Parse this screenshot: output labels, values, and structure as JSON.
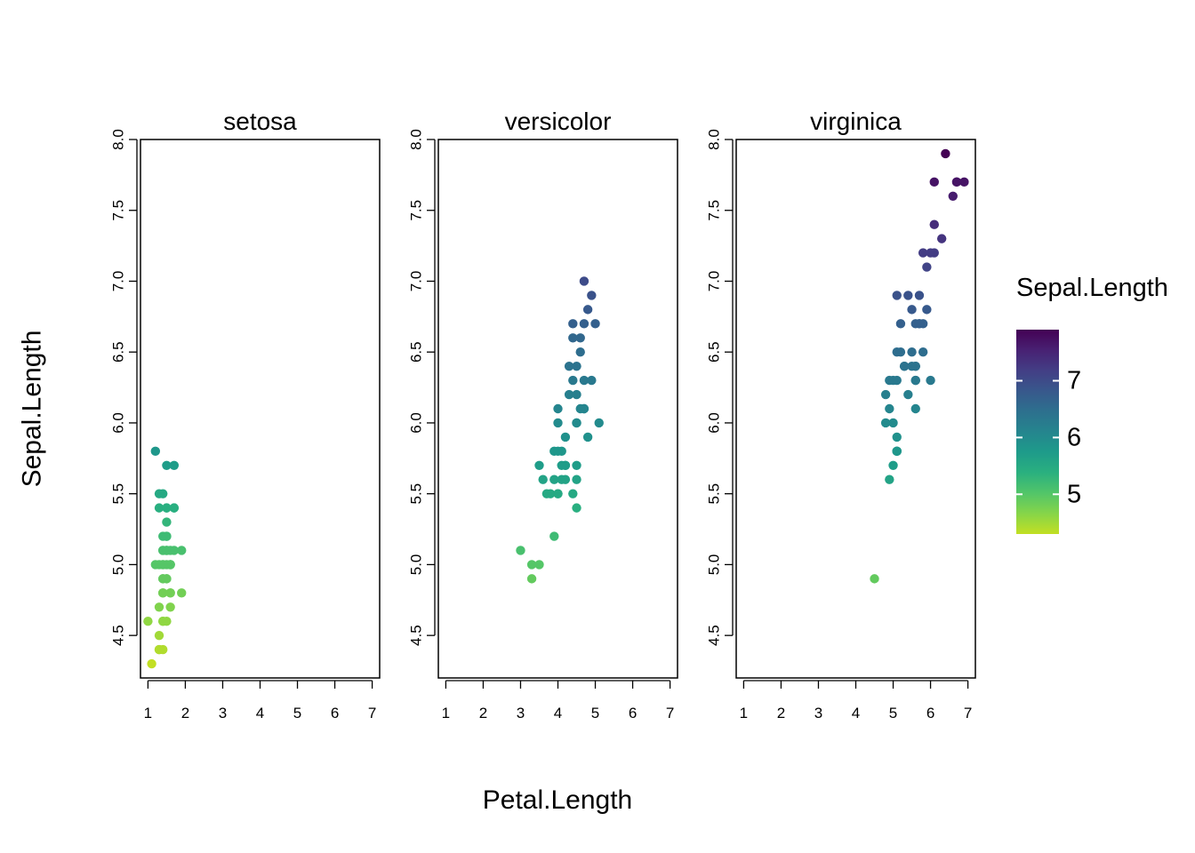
{
  "chart_data": {
    "type": "scatter",
    "xlabel": "Petal.Length",
    "ylabel": "Sepal.Length",
    "xlim": [
      0.8,
      7.2
    ],
    "ylim": [
      4.2,
      8.0
    ],
    "x_ticks": [
      1,
      2,
      3,
      4,
      5,
      6,
      7
    ],
    "y_ticks": [
      4.5,
      5.0,
      5.5,
      6.0,
      6.5,
      7.0,
      7.5,
      8.0
    ],
    "y_tick_labels": [
      "4.5",
      "5.0",
      "5.5",
      "6.0",
      "6.5",
      "7.0",
      "7.5",
      "8.0"
    ],
    "grid": false,
    "color_by": "Sepal.Length",
    "colorscale": "viridis-reversed",
    "color_range": [
      4.3,
      7.9
    ],
    "legend": {
      "title": "Sepal.Length",
      "position": "right",
      "ticks": [
        5,
        6,
        7
      ],
      "colors": [
        "#c2df23",
        "#86d549",
        "#52c569",
        "#2ab07f",
        "#1e9b8a",
        "#25858e",
        "#2d708e",
        "#38588c",
        "#433e85",
        "#482173",
        "#440154"
      ]
    },
    "facets": [
      {
        "title": "setosa",
        "points": [
          [
            1.4,
            5.1
          ],
          [
            1.4,
            4.9
          ],
          [
            1.3,
            4.7
          ],
          [
            1.5,
            4.6
          ],
          [
            1.4,
            5.0
          ],
          [
            1.7,
            5.4
          ],
          [
            1.4,
            4.6
          ],
          [
            1.5,
            5.0
          ],
          [
            1.4,
            4.4
          ],
          [
            1.5,
            4.9
          ],
          [
            1.5,
            5.4
          ],
          [
            1.6,
            4.8
          ],
          [
            1.4,
            4.8
          ],
          [
            1.1,
            4.3
          ],
          [
            1.2,
            5.8
          ],
          [
            1.5,
            5.7
          ],
          [
            1.3,
            5.4
          ],
          [
            1.4,
            5.1
          ],
          [
            1.7,
            5.7
          ],
          [
            1.5,
            5.1
          ],
          [
            1.7,
            5.4
          ],
          [
            1.5,
            5.1
          ],
          [
            1.0,
            4.6
          ],
          [
            1.7,
            5.1
          ],
          [
            1.9,
            4.8
          ],
          [
            1.6,
            5.0
          ],
          [
            1.6,
            5.0
          ],
          [
            1.5,
            5.2
          ],
          [
            1.4,
            5.2
          ],
          [
            1.6,
            4.7
          ],
          [
            1.6,
            4.8
          ],
          [
            1.5,
            5.4
          ],
          [
            1.5,
            5.2
          ],
          [
            1.4,
            5.5
          ],
          [
            1.5,
            4.9
          ],
          [
            1.2,
            5.0
          ],
          [
            1.3,
            5.5
          ],
          [
            1.4,
            4.9
          ],
          [
            1.3,
            4.4
          ],
          [
            1.5,
            5.1
          ],
          [
            1.3,
            5.0
          ],
          [
            1.3,
            4.5
          ],
          [
            1.3,
            4.4
          ],
          [
            1.6,
            5.0
          ],
          [
            1.9,
            5.1
          ],
          [
            1.4,
            4.8
          ],
          [
            1.6,
            5.1
          ],
          [
            1.4,
            4.6
          ],
          [
            1.5,
            5.3
          ],
          [
            1.4,
            5.0
          ]
        ]
      },
      {
        "title": "versicolor",
        "points": [
          [
            4.7,
            7.0
          ],
          [
            4.5,
            6.4
          ],
          [
            4.9,
            6.9
          ],
          [
            4.0,
            5.5
          ],
          [
            4.6,
            6.5
          ],
          [
            4.5,
            5.7
          ],
          [
            4.7,
            6.3
          ],
          [
            3.3,
            4.9
          ],
          [
            4.6,
            6.6
          ],
          [
            3.9,
            5.2
          ],
          [
            3.5,
            5.0
          ],
          [
            4.2,
            5.9
          ],
          [
            4.0,
            6.0
          ],
          [
            4.7,
            6.1
          ],
          [
            3.6,
            5.6
          ],
          [
            4.4,
            6.7
          ],
          [
            4.5,
            5.6
          ],
          [
            4.1,
            5.8
          ],
          [
            4.5,
            6.2
          ],
          [
            3.9,
            5.6
          ],
          [
            4.8,
            5.9
          ],
          [
            4.0,
            6.1
          ],
          [
            4.9,
            6.3
          ],
          [
            4.7,
            6.1
          ],
          [
            4.3,
            6.4
          ],
          [
            4.4,
            6.6
          ],
          [
            4.8,
            6.8
          ],
          [
            5.0,
            6.7
          ],
          [
            4.5,
            6.0
          ],
          [
            3.5,
            5.7
          ],
          [
            3.8,
            5.5
          ],
          [
            3.7,
            5.5
          ],
          [
            3.9,
            5.8
          ],
          [
            5.1,
            6.0
          ],
          [
            4.5,
            5.4
          ],
          [
            4.5,
            6.0
          ],
          [
            4.7,
            6.7
          ],
          [
            4.4,
            6.3
          ],
          [
            4.1,
            5.6
          ],
          [
            4.0,
            5.5
          ],
          [
            4.4,
            5.5
          ],
          [
            4.6,
            6.1
          ],
          [
            4.0,
            5.8
          ],
          [
            3.3,
            5.0
          ],
          [
            4.2,
            5.6
          ],
          [
            4.2,
            5.7
          ],
          [
            4.2,
            5.7
          ],
          [
            4.3,
            6.2
          ],
          [
            3.0,
            5.1
          ],
          [
            4.1,
            5.7
          ]
        ]
      },
      {
        "title": "virginica",
        "points": [
          [
            6.0,
            6.3
          ],
          [
            5.1,
            5.8
          ],
          [
            5.9,
            7.1
          ],
          [
            5.6,
            6.3
          ],
          [
            5.8,
            6.5
          ],
          [
            6.6,
            7.6
          ],
          [
            4.5,
            4.9
          ],
          [
            6.3,
            7.3
          ],
          [
            5.8,
            6.7
          ],
          [
            6.1,
            7.2
          ],
          [
            5.1,
            6.5
          ],
          [
            5.3,
            6.4
          ],
          [
            5.5,
            6.8
          ],
          [
            5.0,
            5.7
          ],
          [
            5.1,
            5.8
          ],
          [
            5.3,
            6.4
          ],
          [
            5.5,
            6.5
          ],
          [
            6.7,
            7.7
          ],
          [
            6.9,
            7.7
          ],
          [
            5.0,
            6.0
          ],
          [
            5.7,
            6.9
          ],
          [
            4.9,
            5.6
          ],
          [
            6.7,
            7.7
          ],
          [
            4.9,
            6.3
          ],
          [
            5.7,
            6.7
          ],
          [
            6.0,
            7.2
          ],
          [
            4.8,
            6.2
          ],
          [
            4.9,
            6.1
          ],
          [
            5.6,
            6.4
          ],
          [
            5.8,
            7.2
          ],
          [
            6.1,
            7.4
          ],
          [
            6.4,
            7.9
          ],
          [
            5.6,
            6.4
          ],
          [
            5.1,
            6.3
          ],
          [
            5.6,
            6.1
          ],
          [
            6.1,
            7.7
          ],
          [
            5.6,
            6.3
          ],
          [
            5.5,
            6.4
          ],
          [
            4.8,
            6.0
          ],
          [
            5.4,
            6.9
          ],
          [
            5.6,
            6.7
          ],
          [
            5.1,
            6.9
          ],
          [
            5.1,
            5.8
          ],
          [
            5.9,
            6.8
          ],
          [
            5.7,
            6.7
          ],
          [
            5.2,
            6.7
          ],
          [
            5.0,
            6.3
          ],
          [
            5.2,
            6.5
          ],
          [
            5.4,
            6.2
          ],
          [
            5.1,
            5.9
          ]
        ]
      }
    ]
  }
}
